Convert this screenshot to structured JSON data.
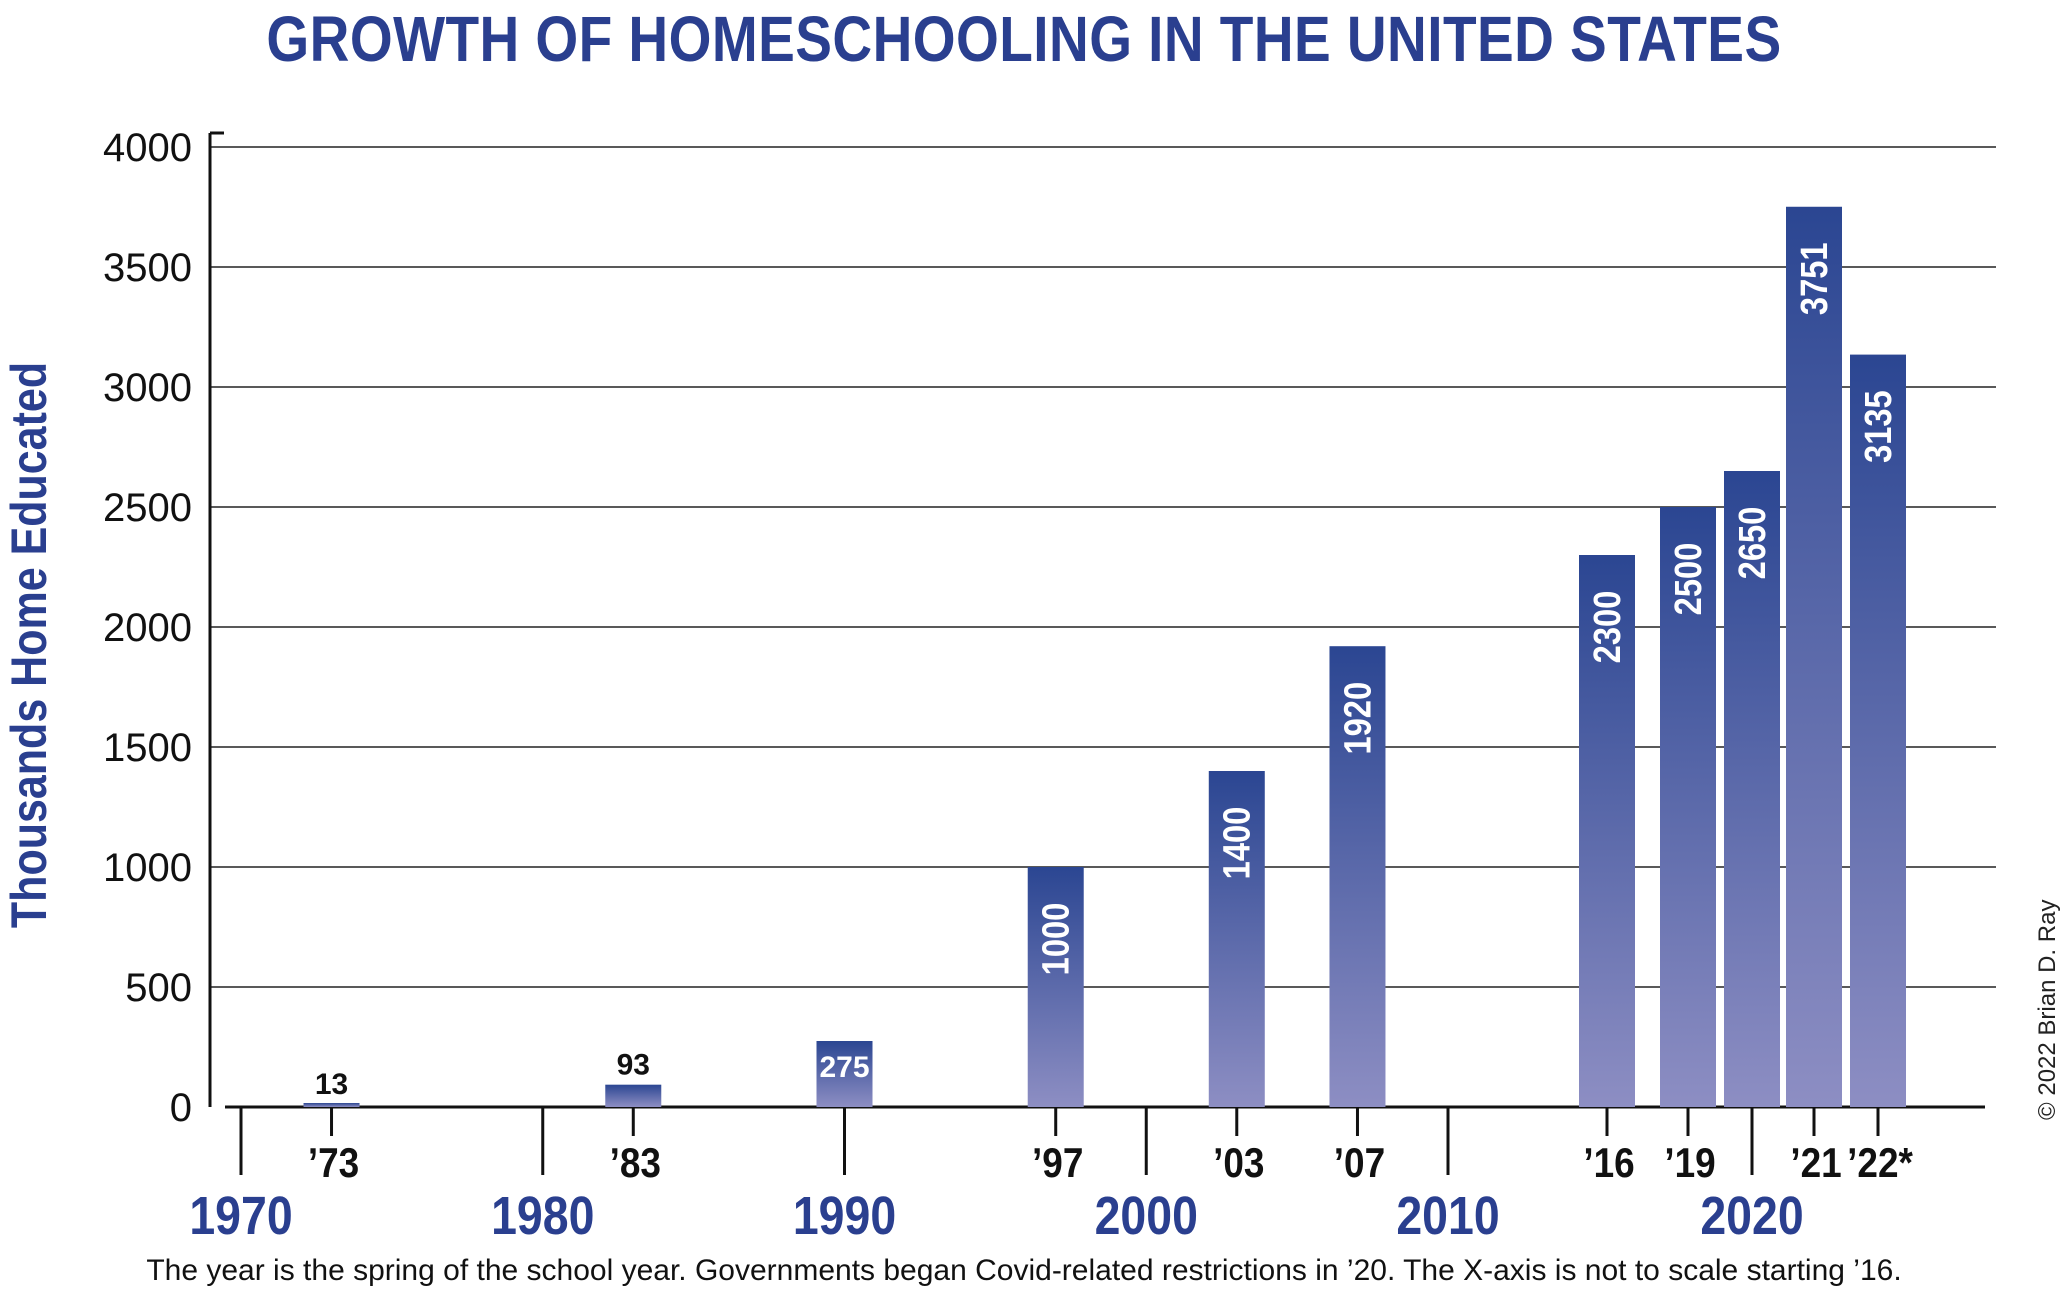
{
  "chart_data": {
    "type": "bar",
    "title": "GROWTH OF HOMESCHOOLING IN THE UNITED STATES",
    "ylabel": "Thousands Home Educated",
    "xlabel": "",
    "ylim": [
      0,
      4000
    ],
    "yticks": [
      0,
      500,
      1000,
      1500,
      2000,
      2500,
      3000,
      3500,
      4000
    ],
    "grid": true,
    "decade_labels": [
      "1970",
      "1980",
      "1990",
      "2000",
      "2010",
      "2020"
    ],
    "bars": [
      {
        "x": 1973,
        "year_label": "’73",
        "value": 13,
        "label": "13"
      },
      {
        "x": 1983,
        "year_label": "’83",
        "value": 93,
        "label": "93"
      },
      {
        "x": 1990,
        "year_label": "",
        "value": 275,
        "label": "275"
      },
      {
        "x": 1997,
        "year_label": "’97",
        "value": 1000,
        "label": "1000"
      },
      {
        "x": 2003,
        "year_label": "’03",
        "value": 1400,
        "label": "1400"
      },
      {
        "x": 2007,
        "year_label": "’07",
        "value": 1920,
        "label": "1920"
      },
      {
        "x": 2016,
        "year_label": "’16",
        "value": 2300,
        "label": "2300"
      },
      {
        "x": 2019,
        "year_label": "’19",
        "value": 2500,
        "label": "2500"
      },
      {
        "x": 2020,
        "year_label": "",
        "value": 2650,
        "label": "2650"
      },
      {
        "x": 2021,
        "year_label": "’21",
        "value": 3751,
        "label": "3751"
      },
      {
        "x": 2022,
        "year_label": "’22*",
        "value": 3135,
        "label": "3135"
      }
    ],
    "colors": {
      "bar_top": "#2b4692",
      "bar_bottom": "#8d8ec3",
      "accent": "#2a3f8f"
    }
  },
  "footnote": "The year is the spring of the school year. Governments began Covid-related restrictions in ’20. The X-axis is not to scale starting ’16.",
  "copyright": "© 2022 Brian D. Ray"
}
